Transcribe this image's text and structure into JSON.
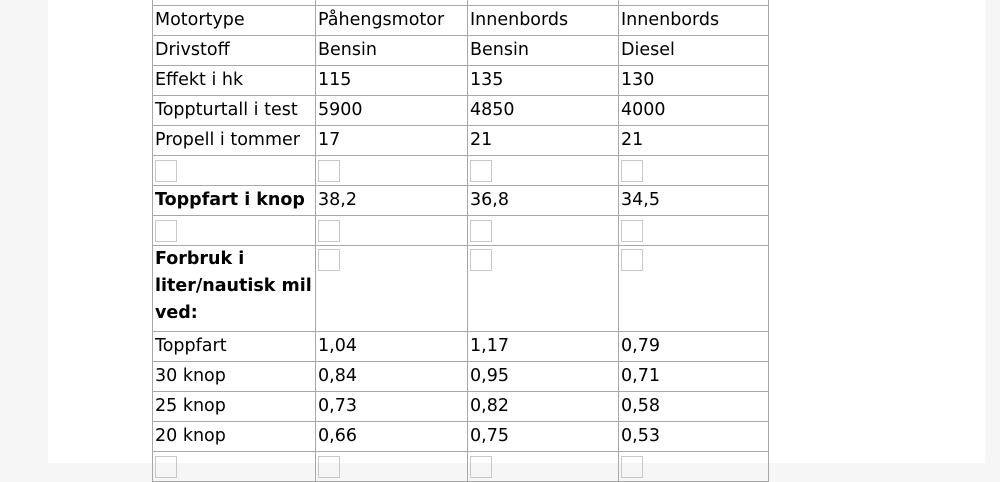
{
  "table": {
    "rows": [
      [
        "Motortype",
        "Påhengsmotor",
        "Innenbords",
        "Innenbords"
      ],
      [
        "Drivstoff",
        "Bensin",
        "Bensin",
        "Diesel"
      ],
      [
        "Effekt i hk",
        "115",
        "135",
        "130"
      ],
      [
        "Toppturtall i test",
        "5900",
        "4850",
        "4000"
      ],
      [
        "Propell i tommer",
        "17",
        "21",
        "21"
      ],
      [
        "Toppfart i knop",
        "38,2",
        "36,8",
        "34,5"
      ],
      [
        "Forbruk i liter/nautisk mil ved:"
      ],
      [
        "Toppfart",
        "1,04",
        "1,17",
        "0,79"
      ],
      [
        "30 knop",
        "0,84",
        "0,95",
        "0,71"
      ],
      [
        "25 knop",
        "0,73",
        "0,82",
        "0,58"
      ],
      [
        "20 knop",
        "0,66",
        "0,75",
        "0,53"
      ]
    ]
  }
}
